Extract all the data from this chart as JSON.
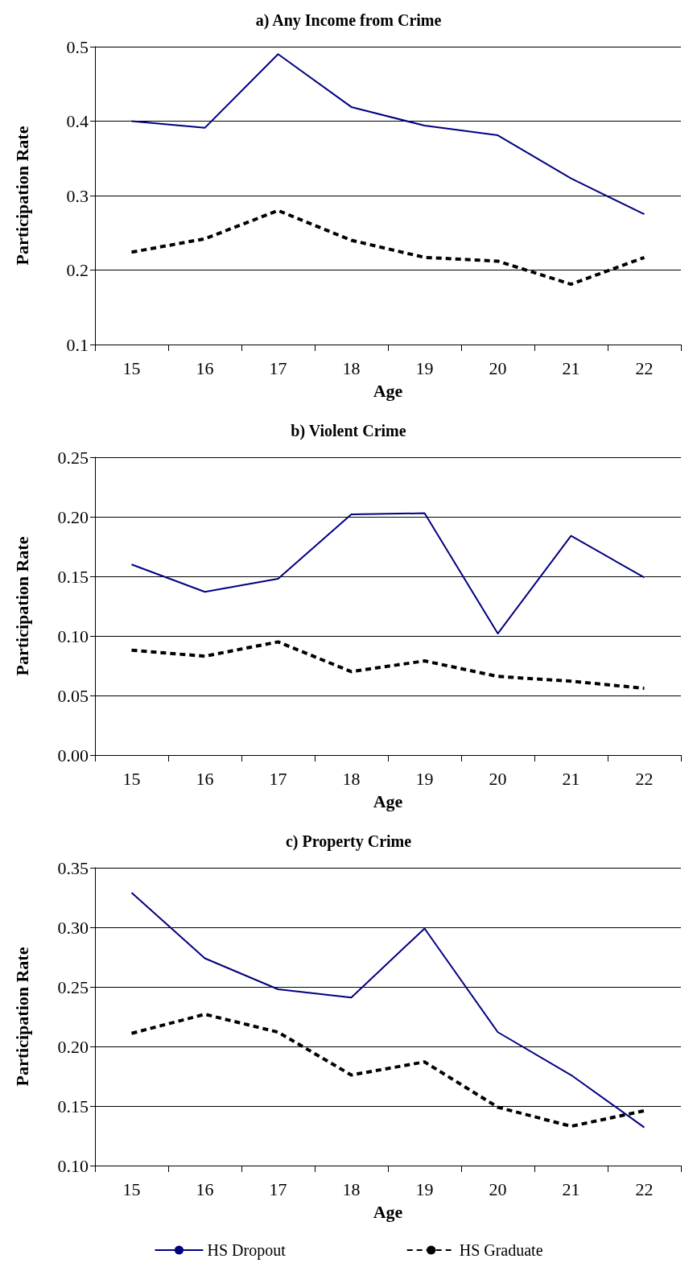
{
  "chart_data": [
    {
      "type": "line",
      "title": "a) Any Income from Crime",
      "xlabel": "Age",
      "ylabel": "Participation Rate",
      "categories": [
        "15",
        "16",
        "17",
        "18",
        "19",
        "20",
        "21",
        "22"
      ],
      "series": [
        {
          "color": "#000080",
          "line_style": "solid",
          "values": [
            0.4,
            0.391,
            0.49,
            0.419,
            0.394,
            0.381,
            0.323,
            0.275
          ]
        },
        {
          "color": "#000000",
          "line_style": "dashed",
          "values": [
            0.224,
            0.242,
            0.28,
            0.24,
            0.217,
            0.212,
            0.181,
            0.217
          ]
        }
      ],
      "ylim": [
        0.1,
        0.5
      ],
      "yticks": [
        0.1,
        0.2,
        0.3,
        0.4,
        0.5
      ],
      "grid": "y",
      "legend": false,
      "marker": "none"
    },
    {
      "type": "line",
      "title": "b) Violent Crime",
      "xlabel": "Age",
      "ylabel": "Participation Rate",
      "categories": [
        "15",
        "16",
        "17",
        "18",
        "19",
        "20",
        "21",
        "22"
      ],
      "series": [
        {
          "color": "#000080",
          "line_style": "solid",
          "values": [
            0.16,
            0.137,
            0.148,
            0.202,
            0.203,
            0.102,
            0.184,
            0.149
          ]
        },
        {
          "color": "#000000",
          "line_style": "dashed",
          "values": [
            0.088,
            0.083,
            0.095,
            0.07,
            0.079,
            0.066,
            0.062,
            0.056
          ]
        }
      ],
      "ylim": [
        0,
        0.25
      ],
      "yticks": [
        {
          "value": 0,
          "label": "0.00"
        },
        0.05,
        {
          "value": 0.1,
          "label": "0.10"
        },
        0.15,
        {
          "value": 0.2,
          "label": "0.20"
        },
        0.25
      ],
      "grid": "y",
      "legend": false,
      "marker": "none"
    },
    {
      "type": "line",
      "title": "c) Property Crime",
      "xlabel": "Age",
      "ylabel": "Participation Rate",
      "categories": [
        "15",
        "16",
        "17",
        "18",
        "19",
        "20",
        "21",
        "22"
      ],
      "series": [
        {
          "name": "HS Dropout",
          "color": "#000080",
          "line_style": "solid",
          "values": [
            0.329,
            0.274,
            0.248,
            0.241,
            0.299,
            0.212,
            0.176,
            0.132
          ]
        },
        {
          "name": "HS Graduate",
          "color": "#000000",
          "line_style": "dashed",
          "values": [
            0.211,
            0.227,
            0.212,
            0.176,
            0.187,
            0.149,
            0.133,
            0.146
          ]
        }
      ],
      "ylim": [
        0.1,
        0.35
      ],
      "yticks": [
        {
          "value": 0.1,
          "label": "0.10"
        },
        0.15,
        {
          "value": 0.2,
          "label": "0.20"
        },
        0.25,
        {
          "value": 0.3,
          "label": "0.30"
        },
        0.35
      ],
      "grid": "y",
      "legend": "bottom",
      "marker": "none"
    }
  ]
}
